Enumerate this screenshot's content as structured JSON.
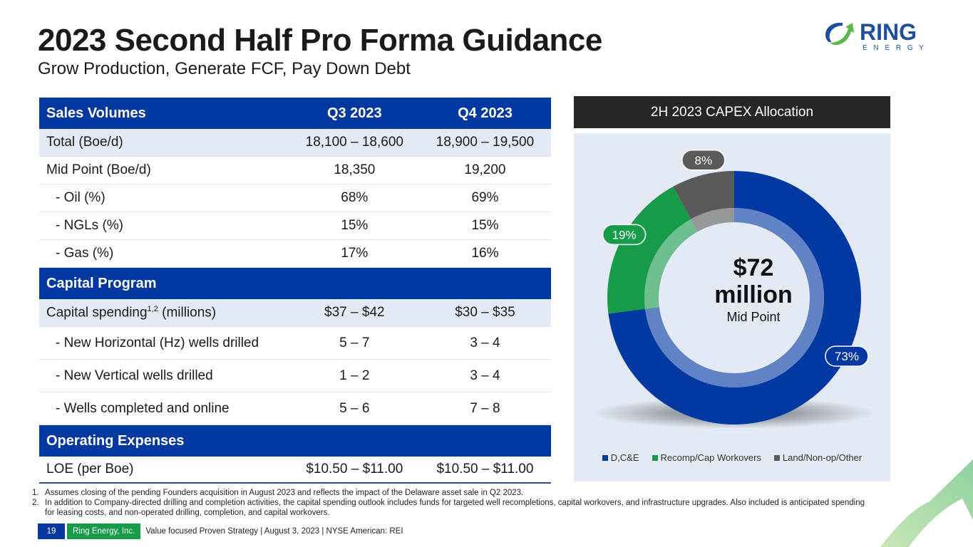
{
  "header": {
    "title": "2023 Second Half Pro Forma Guidance",
    "subtitle": "Grow Production, Generate FCF, Pay Down Debt"
  },
  "logo": {
    "word": "RING",
    "sub": "E N E R G Y",
    "icon": "ring-arrow-logo-icon"
  },
  "table": {
    "columns": [
      "Q3 2023",
      "Q4 2023"
    ],
    "sections": [
      {
        "title": "Sales Volumes",
        "rows": [
          {
            "label": "Total (Boe/d)",
            "q3": "18,100 – 18,600",
            "q4": "18,900 – 19,500",
            "shaded": true
          },
          {
            "label": "Mid Point (Boe/d)",
            "q3": "18,350",
            "q4": "19,200"
          },
          {
            "label": "- Oil (%)",
            "q3": "68%",
            "q4": "69%"
          },
          {
            "label": "- NGLs (%)",
            "q3": "15%",
            "q4": "15%"
          },
          {
            "label": "- Gas (%)",
            "q3": "17%",
            "q4": "16%"
          }
        ]
      },
      {
        "title": "Capital Program",
        "rows": [
          {
            "label": "Capital spending",
            "sup": "1,2",
            "label_suffix": " (millions)",
            "q3": "$37 – $42",
            "q4": "$30 – $35",
            "shaded": true
          },
          {
            "label": "- New Horizontal (Hz) wells drilled",
            "q3": "5 – 7",
            "q4": "3 – 4"
          },
          {
            "label": "- New Vertical wells drilled",
            "q3": "1 – 2",
            "q4": "3 – 4"
          },
          {
            "label": "- Wells completed and online",
            "q3": "5 – 6",
            "q4": "7 – 8"
          }
        ]
      },
      {
        "title": "Operating Expenses",
        "rows": [
          {
            "label": "LOE (per Boe)",
            "q3": "$10.50 – $11.00",
            "q4": "$10.50 – $11.00"
          }
        ]
      }
    ]
  },
  "chart_data": {
    "type": "pie",
    "variant": "donut",
    "title": "2H 2023 CAPEX Allocation",
    "center_label": {
      "value": "$72",
      "unit": "million",
      "caption": "Mid Point"
    },
    "series": [
      {
        "name": "D,C&E",
        "value": 73,
        "label": "73%",
        "color": "#0238a1"
      },
      {
        "name": "Recomp/Cap Workovers",
        "value": 19,
        "label": "19%",
        "color": "#169b48"
      },
      {
        "name": "Land/Non-op/Other",
        "value": 8,
        "label": "8%",
        "color": "#5a5a5a"
      }
    ],
    "legend_position": "bottom"
  },
  "footnotes": [
    {
      "num": "1.",
      "text": "Assumes closing of the pending Founders acquisition in August 2023 and reflects the impact of the Delaware asset sale in Q2 2023."
    },
    {
      "num": "2.",
      "text": "In addition to Company-directed drilling and completion activities, the capital spending outlook includes funds for targeted well recompletions, capital workovers, and infrastructure upgrades. Also included is anticipated spending for leasing costs, and non-operated drilling, completion, and capital workovers."
    }
  ],
  "footer": {
    "page": "19",
    "company": "Ring Energy, Inc.",
    "text": "Value focused Proven Strategy  |  August 3, 2023  |  NYSE American: REI"
  }
}
